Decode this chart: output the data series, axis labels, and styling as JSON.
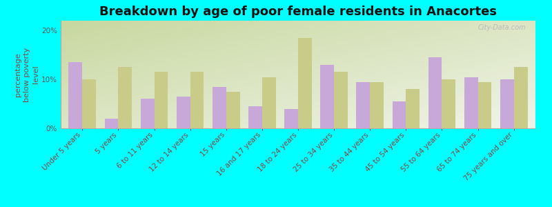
{
  "title": "Breakdown by age of poor female residents in Anacortes",
  "ylabel": "percentage\nbelow poverty\nlevel",
  "background_color": "#00ffff",
  "categories": [
    "Under 5 years",
    "5 years",
    "6 to 11 years",
    "12 to 14 years",
    "15 years",
    "16 and 17 years",
    "18 to 24 years",
    "25 to 34 years",
    "35 to 44 years",
    "45 to 54 years",
    "55 to 64 years",
    "65 to 74 years",
    "75 years and over"
  ],
  "anacortes_values": [
    13.5,
    2.0,
    6.0,
    6.5,
    8.5,
    4.5,
    4.0,
    13.0,
    9.5,
    5.5,
    14.5,
    10.5,
    10.0
  ],
  "washington_values": [
    10.0,
    12.5,
    11.5,
    11.5,
    7.5,
    10.5,
    18.5,
    11.5,
    9.5,
    8.0,
    10.0,
    9.5,
    12.5
  ],
  "anacortes_color": "#c8a8d8",
  "washington_color": "#c8cc88",
  "bar_width": 0.38,
  "ylim": [
    0,
    22
  ],
  "yticks": [
    0,
    10,
    20
  ],
  "ytick_labels": [
    "0%",
    "10%",
    "20%"
  ],
  "grad_top_left": "#c8d8a0",
  "grad_bottom_right": "#f0f4e8",
  "title_fontsize": 13,
  "tick_fontsize": 7.5,
  "ylabel_fontsize": 8,
  "legend_fontsize": 9,
  "xlabel_color": "#884444",
  "ylabel_color": "#884444",
  "watermark": "City-Data.com"
}
